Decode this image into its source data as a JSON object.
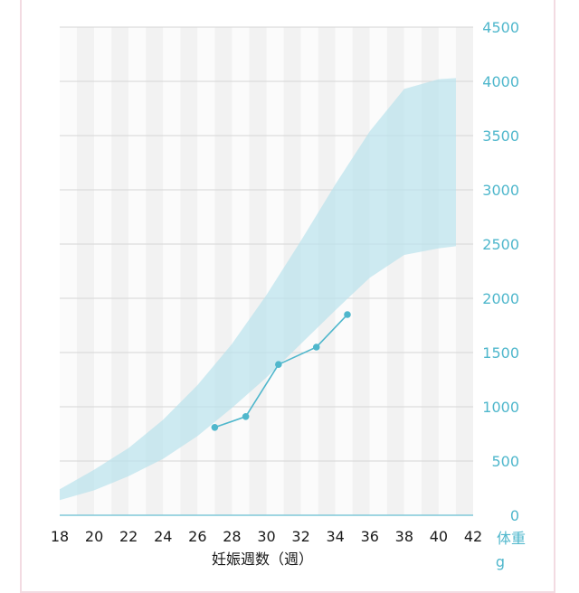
{
  "chart_data": {
    "type": "area",
    "xlabel": "妊娠週数（週）",
    "ylabel": "体重",
    "yunit": "g",
    "xlim": [
      18,
      42
    ],
    "ylim": [
      0,
      4500
    ],
    "xticks": [
      18,
      20,
      22,
      24,
      26,
      28,
      30,
      32,
      34,
      36,
      38,
      40,
      42
    ],
    "yticks": [
      0,
      500,
      1000,
      1500,
      2000,
      2500,
      3000,
      3500,
      4000,
      4500
    ],
    "grid": true,
    "band": {
      "x": [
        18,
        20,
        22,
        24,
        26,
        28,
        30,
        32,
        34,
        36,
        38,
        40,
        41
      ],
      "upper": [
        240,
        420,
        620,
        880,
        1200,
        1580,
        2030,
        2530,
        3050,
        3540,
        3930,
        4020,
        4030
      ],
      "lower": [
        140,
        230,
        360,
        520,
        730,
        990,
        1270,
        1580,
        1890,
        2190,
        2400,
        2460,
        2480
      ]
    },
    "series": [
      {
        "x": [
          27,
          28.8,
          30.7,
          32.9,
          34.7
        ],
        "y": [
          810,
          910,
          1390,
          1550,
          1850
        ]
      }
    ],
    "colors": {
      "band": "#b9e2ed",
      "line": "#4fb7cc",
      "stripe_dark": "#f2f2f2",
      "stripe_light": "#fbfbfb",
      "grid": "#d6d6d6",
      "baseline": "#7fc8d8"
    }
  }
}
